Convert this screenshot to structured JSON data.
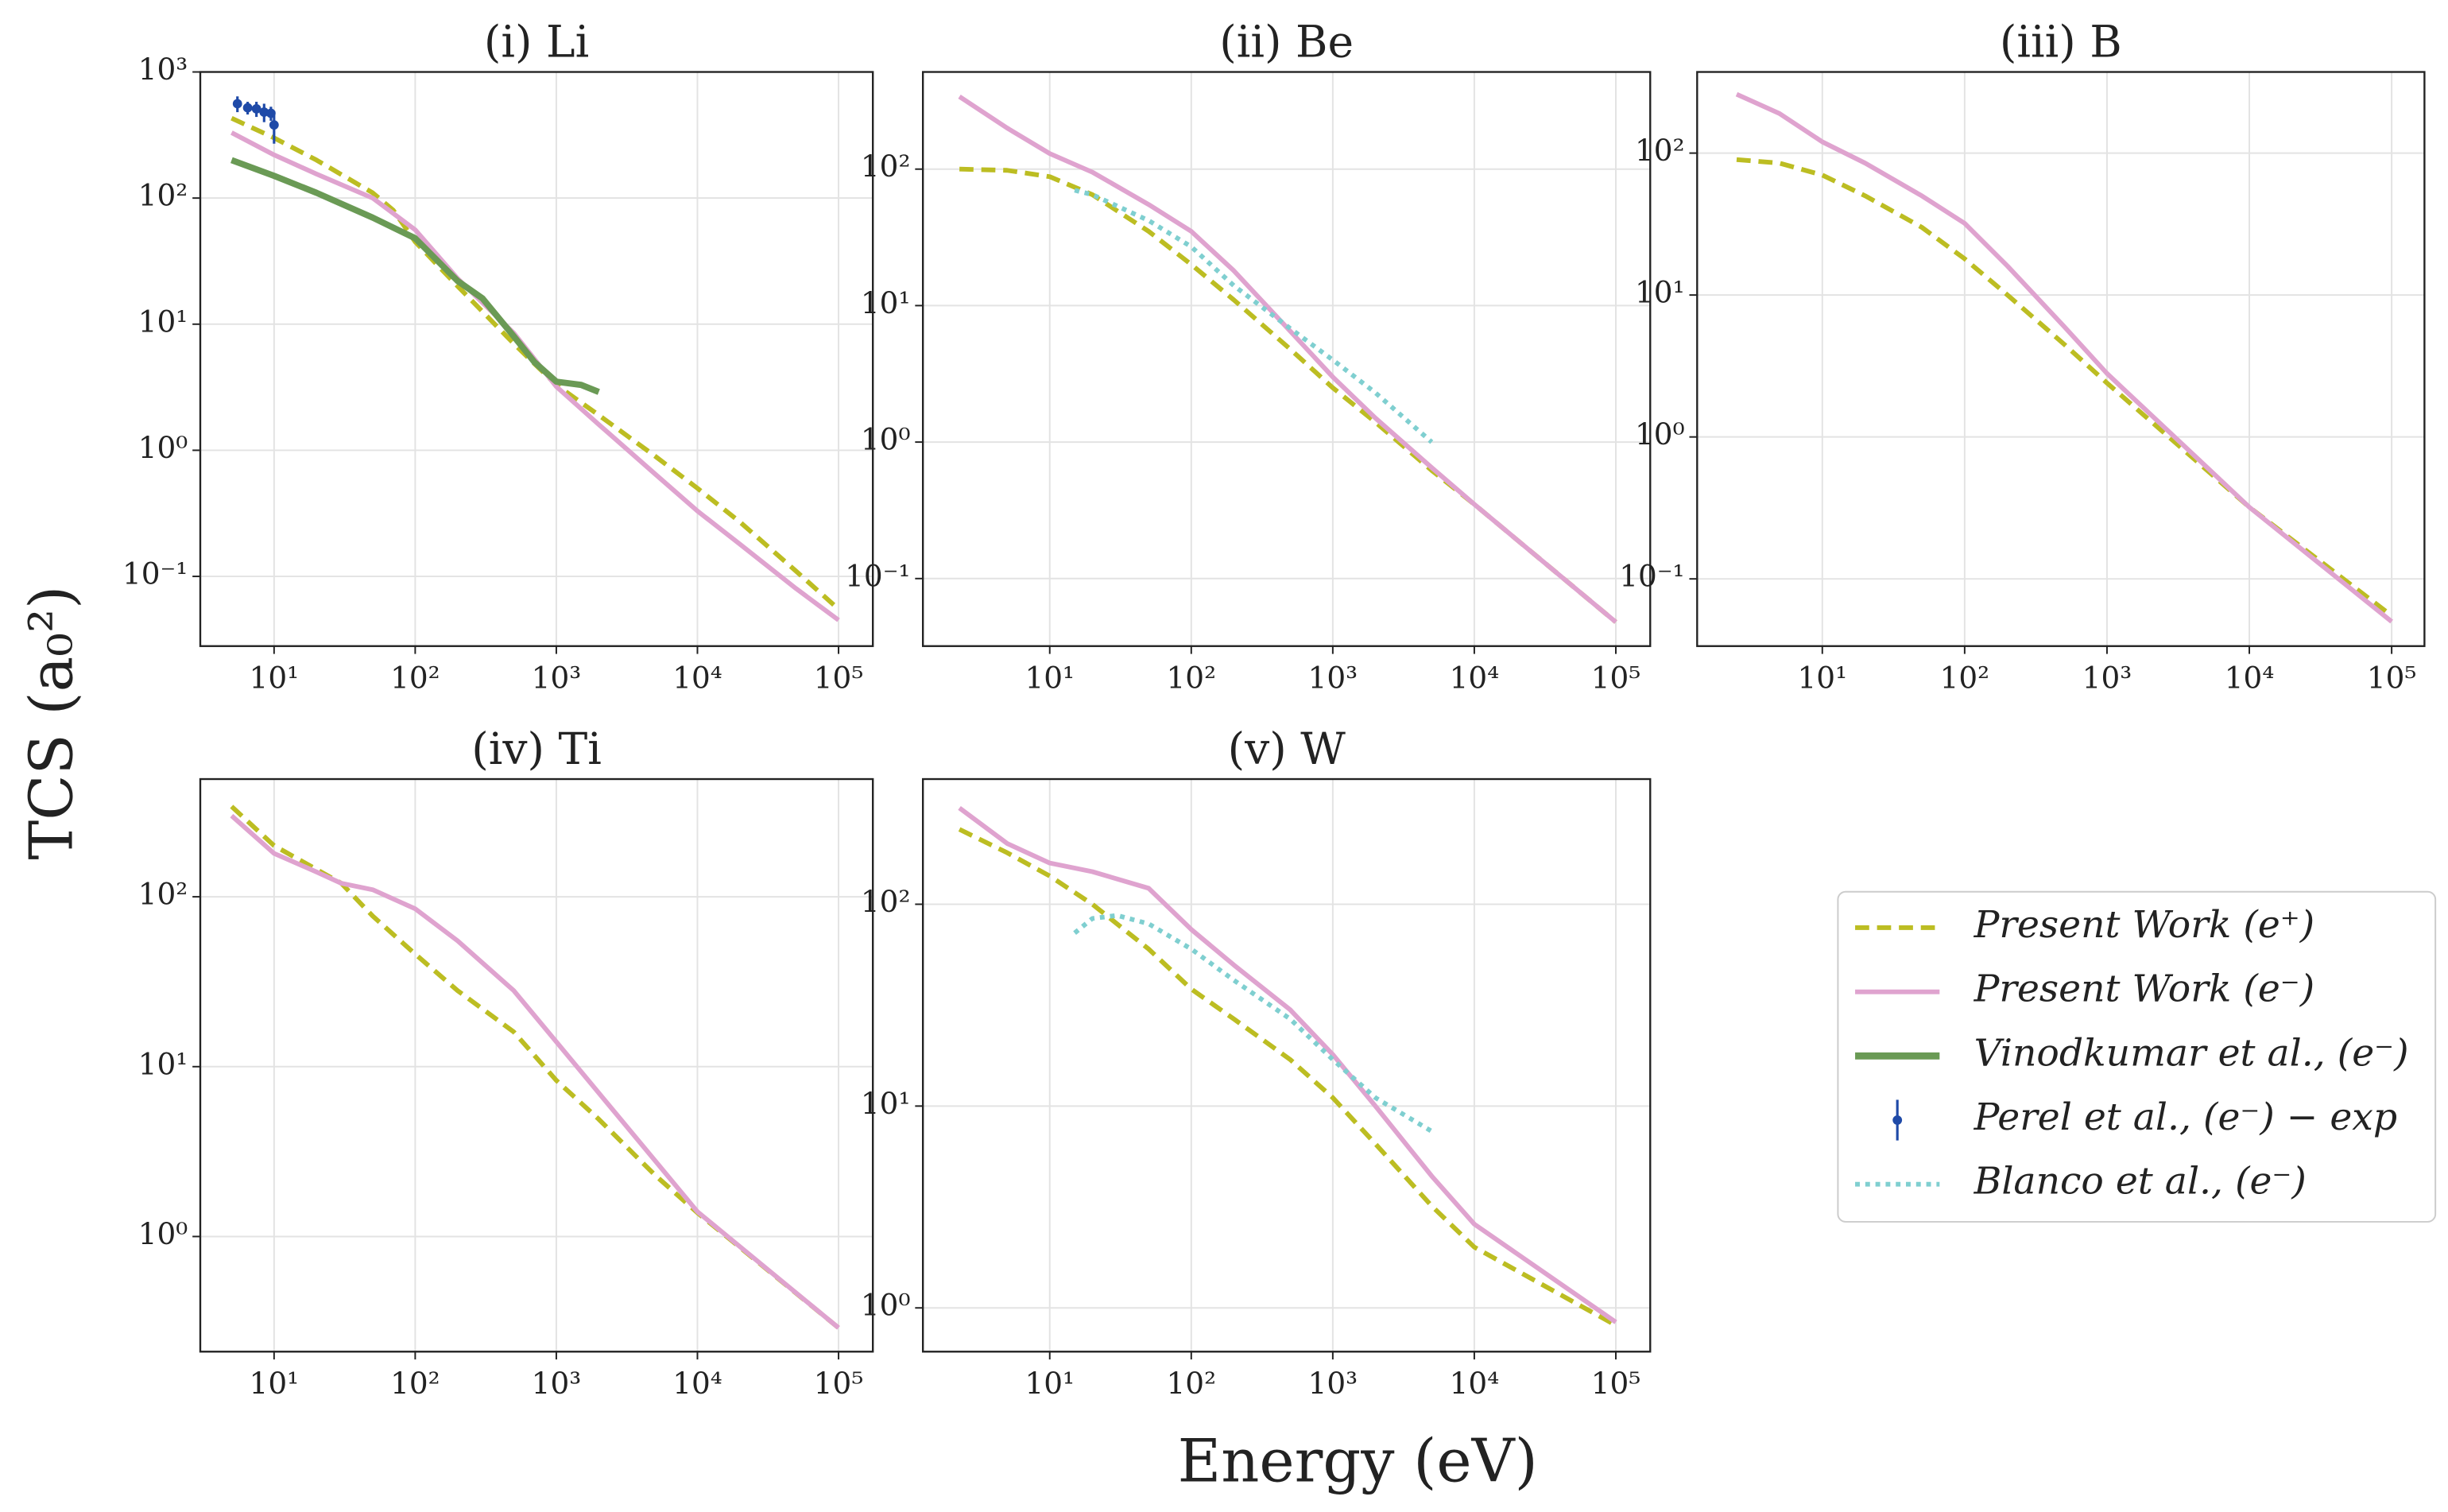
{
  "ylabel": "TCS (a₀²)",
  "xlabel": "Energy (eV)",
  "chart_data": [
    {
      "type": "line",
      "title": "(i) Li",
      "log_x": true,
      "log_y": true,
      "grid": true,
      "xlim": [
        3.0,
        175000
      ],
      "ylim": [
        0.028,
        1000
      ],
      "xticks": [
        {
          "value": 10,
          "label": "10¹"
        },
        {
          "value": 100,
          "label": "10²"
        },
        {
          "value": 1000,
          "label": "10³"
        },
        {
          "value": 10000,
          "label": "10⁴"
        },
        {
          "value": 100000,
          "label": "10⁵"
        }
      ],
      "yticks": [
        {
          "value": 0.1,
          "label": "10⁻¹"
        },
        {
          "value": 1,
          "label": "10⁰"
        },
        {
          "value": 10,
          "label": "10¹"
        },
        {
          "value": 100,
          "label": "10²"
        },
        {
          "value": 1000,
          "label": "10³"
        }
      ],
      "series": [
        {
          "name": "Present Work (e⁺)",
          "color": "#bcbd22",
          "style": "dashed",
          "x": [
            5,
            10,
            20,
            50,
            70,
            100,
            200,
            500,
            1000,
            2000,
            5000,
            10000,
            20000,
            50000,
            100000
          ],
          "values": [
            430,
            300,
            200,
            110,
            80,
            45,
            20,
            7,
            3.3,
            1.9,
            0.9,
            0.5,
            0.27,
            0.11,
            0.055
          ]
        },
        {
          "name": "Present Work (e⁻)",
          "color": "#dfa3cf",
          "style": "solid",
          "x": [
            5,
            10,
            20,
            50,
            100,
            200,
            500,
            1000,
            2000,
            5000,
            10000,
            20000,
            50000,
            100000
          ],
          "values": [
            330,
            220,
            155,
            100,
            56,
            23,
            8.5,
            3.2,
            1.6,
            0.65,
            0.33,
            0.18,
            0.08,
            0.045
          ]
        },
        {
          "name": "Vinodkumar et al., (e⁻)",
          "color": "#6a9a55",
          "style": "solid",
          "x": [
            5,
            10,
            20,
            50,
            100,
            200,
            300,
            500,
            700,
            1000,
            1500,
            2000
          ],
          "values": [
            200,
            150,
            110,
            70,
            48,
            22,
            16,
            8,
            5,
            3.5,
            3.3,
            2.9
          ]
        },
        {
          "name": "Perel et al., (e⁻) − exp",
          "color": "#1f4aa8",
          "style": "errorbar",
          "x": [
            5.5,
            6.5,
            7.5,
            8.5,
            9.5,
            10
          ],
          "values": [
            560,
            520,
            510,
            480,
            470,
            380
          ],
          "errors": [
            80,
            60,
            70,
            80,
            60,
            110
          ]
        }
      ]
    },
    {
      "type": "line",
      "title": "(ii) Be",
      "log_x": true,
      "log_y": true,
      "grid": true,
      "xlim": [
        1.27,
        175000
      ],
      "ylim": [
        0.032,
        515
      ],
      "xticks": [
        {
          "value": 10,
          "label": "10¹"
        },
        {
          "value": 100,
          "label": "10²"
        },
        {
          "value": 1000,
          "label": "10³"
        },
        {
          "value": 10000,
          "label": "10⁴"
        },
        {
          "value": 100000,
          "label": "10⁵"
        }
      ],
      "yticks": [
        {
          "value": 0.1,
          "label": "10⁻¹"
        },
        {
          "value": 1,
          "label": "10⁰"
        },
        {
          "value": 10,
          "label": "10¹"
        },
        {
          "value": 100,
          "label": "10²"
        }
      ],
      "series": [
        {
          "name": "Present Work (e⁺)",
          "color": "#bcbd22",
          "style": "dashed",
          "x": [
            2.3,
            5,
            10,
            20,
            50,
            100,
            200,
            500,
            1000,
            2000,
            5000,
            10000,
            100000
          ],
          "values": [
            100,
            98,
            88,
            65,
            35,
            20,
            11,
            4.8,
            2.5,
            1.4,
            0.62,
            0.35,
            0.048
          ]
        },
        {
          "name": "Present Work (e⁻)",
          "color": "#dfa3cf",
          "style": "solid",
          "x": [
            2.3,
            5,
            10,
            20,
            50,
            100,
            200,
            500,
            1000,
            2000,
            5000,
            10000,
            100000
          ],
          "values": [
            340,
            200,
            130,
            95,
            55,
            35,
            18,
            6.5,
            3,
            1.5,
            0.65,
            0.35,
            0.048
          ]
        },
        {
          "name": "Blanco et al., (e⁻)",
          "color": "#7fcfd0",
          "style": "dotted",
          "x": [
            15,
            20,
            50,
            100,
            200,
            500,
            1000,
            2000,
            5000
          ],
          "values": [
            70,
            65,
            42,
            27,
            14,
            6.8,
            4,
            2.3,
            1.0
          ]
        }
      ]
    },
    {
      "type": "line",
      "title": "(iii) B",
      "log_x": true,
      "log_y": true,
      "grid": true,
      "xlim": [
        1.32,
        170000
      ],
      "ylim": [
        0.0336,
        373
      ],
      "xticks": [
        {
          "value": 10,
          "label": "10¹"
        },
        {
          "value": 100,
          "label": "10²"
        },
        {
          "value": 1000,
          "label": "10³"
        },
        {
          "value": 10000,
          "label": "10⁴"
        },
        {
          "value": 100000,
          "label": "10⁵"
        }
      ],
      "yticks": [
        {
          "value": 0.1,
          "label": "10⁻¹"
        },
        {
          "value": 1,
          "label": "10⁰"
        },
        {
          "value": 10,
          "label": "10¹"
        },
        {
          "value": 100,
          "label": "10²"
        }
      ],
      "series": [
        {
          "name": "Present Work (e⁺)",
          "color": "#bcbd22",
          "style": "dashed",
          "x": [
            2.5,
            5,
            10,
            20,
            50,
            100,
            200,
            500,
            1000,
            10000,
            100000
          ],
          "values": [
            90,
            85,
            70,
            50,
            30,
            18,
            10,
            4.5,
            2.4,
            0.32,
            0.055
          ]
        },
        {
          "name": "Present Work (e⁻)",
          "color": "#dfa3cf",
          "style": "solid",
          "x": [
            2.5,
            5,
            10,
            20,
            50,
            100,
            200,
            500,
            1000,
            10000,
            100000
          ],
          "values": [
            260,
            190,
            120,
            85,
            50,
            32,
            16,
            6,
            2.8,
            0.32,
            0.05
          ]
        }
      ]
    },
    {
      "type": "line",
      "title": "(iv) Ti",
      "log_x": true,
      "log_y": true,
      "grid": true,
      "xlim": [
        3.0,
        175000
      ],
      "ylim": [
        0.21,
        493
      ],
      "xticks": [
        {
          "value": 10,
          "label": "10¹"
        },
        {
          "value": 100,
          "label": "10²"
        },
        {
          "value": 1000,
          "label": "10³"
        },
        {
          "value": 10000,
          "label": "10⁴"
        },
        {
          "value": 100000,
          "label": "10⁵"
        }
      ],
      "yticks": [
        {
          "value": 1,
          "label": "10⁰"
        },
        {
          "value": 10,
          "label": "10¹"
        },
        {
          "value": 100,
          "label": "10²"
        }
      ],
      "series": [
        {
          "name": "Present Work (e⁺)",
          "color": "#bcbd22",
          "style": "dashed",
          "x": [
            5,
            10,
            30,
            50,
            100,
            200,
            500,
            1000,
            2000,
            5000,
            10000,
            100000
          ],
          "values": [
            340,
            200,
            120,
            77,
            46,
            28,
            16,
            8.3,
            4.9,
            2.3,
            1.38,
            0.29
          ]
        },
        {
          "name": "Present Work (e⁻)",
          "color": "#dfa3cf",
          "style": "solid",
          "x": [
            5,
            10,
            20,
            30,
            50,
            100,
            200,
            500,
            1000,
            2000,
            5000,
            10000,
            100000
          ],
          "values": [
            300,
            180,
            140,
            120,
            110,
            85,
            55,
            28,
            14,
            7,
            2.8,
            1.4,
            0.29
          ]
        }
      ]
    },
    {
      "type": "line",
      "title": "(v) W",
      "log_x": true,
      "log_y": true,
      "grid": true,
      "xlim": [
        1.27,
        175000
      ],
      "ylim": [
        0.607,
        417
      ],
      "xticks": [
        {
          "value": 10,
          "label": "10¹"
        },
        {
          "value": 100,
          "label": "10²"
        },
        {
          "value": 1000,
          "label": "10³"
        },
        {
          "value": 10000,
          "label": "10⁴"
        },
        {
          "value": 100000,
          "label": "10⁵"
        }
      ],
      "yticks": [
        {
          "value": 1,
          "label": "10⁰"
        },
        {
          "value": 10,
          "label": "10¹"
        },
        {
          "value": 100,
          "label": "10²"
        }
      ],
      "series": [
        {
          "name": "Present Work (e⁺)",
          "color": "#bcbd22",
          "style": "dashed",
          "x": [
            2.3,
            5,
            10,
            20,
            50,
            100,
            200,
            500,
            1000,
            2000,
            5000,
            10000,
            100000
          ],
          "values": [
            235,
            180,
            138,
            100,
            60,
            38,
            27,
            17,
            11,
            6.5,
            3.2,
            2,
            0.82
          ]
        },
        {
          "name": "Present Work (e⁻)",
          "color": "#dfa3cf",
          "style": "solid",
          "x": [
            2.3,
            5,
            10,
            20,
            50,
            100,
            200,
            500,
            1000,
            2000,
            5000,
            10000,
            100000
          ],
          "values": [
            300,
            200,
            160,
            145,
            120,
            75,
            50,
            30,
            18,
            10,
            4.5,
            2.6,
            0.85
          ]
        },
        {
          "name": "Blanco et al., (e⁻)",
          "color": "#7fcfd0",
          "style": "dotted",
          "x": [
            15,
            20,
            30,
            50,
            100,
            200,
            500,
            1000,
            2000,
            5000
          ],
          "values": [
            72,
            85,
            88,
            80,
            60,
            42,
            27,
            17,
            11,
            7.5
          ]
        }
      ]
    }
  ]
}
